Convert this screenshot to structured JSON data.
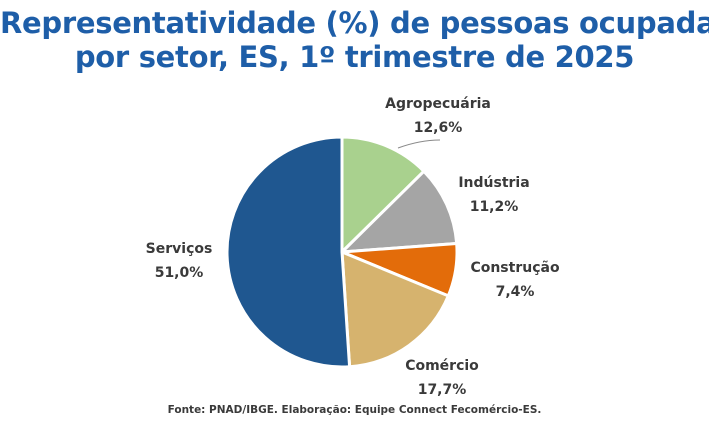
{
  "title_line1": "Representatividade (%) de pessoas ocupadas",
  "title_line2": "por setor, ES, 1º trimestre de 2025",
  "source": "Fonte: PNAD/IBGE. Elaboração: Equipe Connect Fecomércio-ES.",
  "chart_data": {
    "type": "pie",
    "slices": [
      {
        "name": "Agropecuária",
        "value": 12.6,
        "label": "12,6%",
        "color": "#a9d18e"
      },
      {
        "name": "Indústria",
        "value": 11.2,
        "label": "11,2%",
        "color": "#a5a5a5"
      },
      {
        "name": "Construção",
        "value": 7.4,
        "label": "7,4%",
        "color": "#e36c0a"
      },
      {
        "name": "Comércio",
        "value": 17.7,
        "label": "17,7%",
        "color": "#d6b36e"
      },
      {
        "name": "Serviços",
        "value": 51.0,
        "label": "51,0%",
        "color": "#1f5790"
      }
    ]
  }
}
